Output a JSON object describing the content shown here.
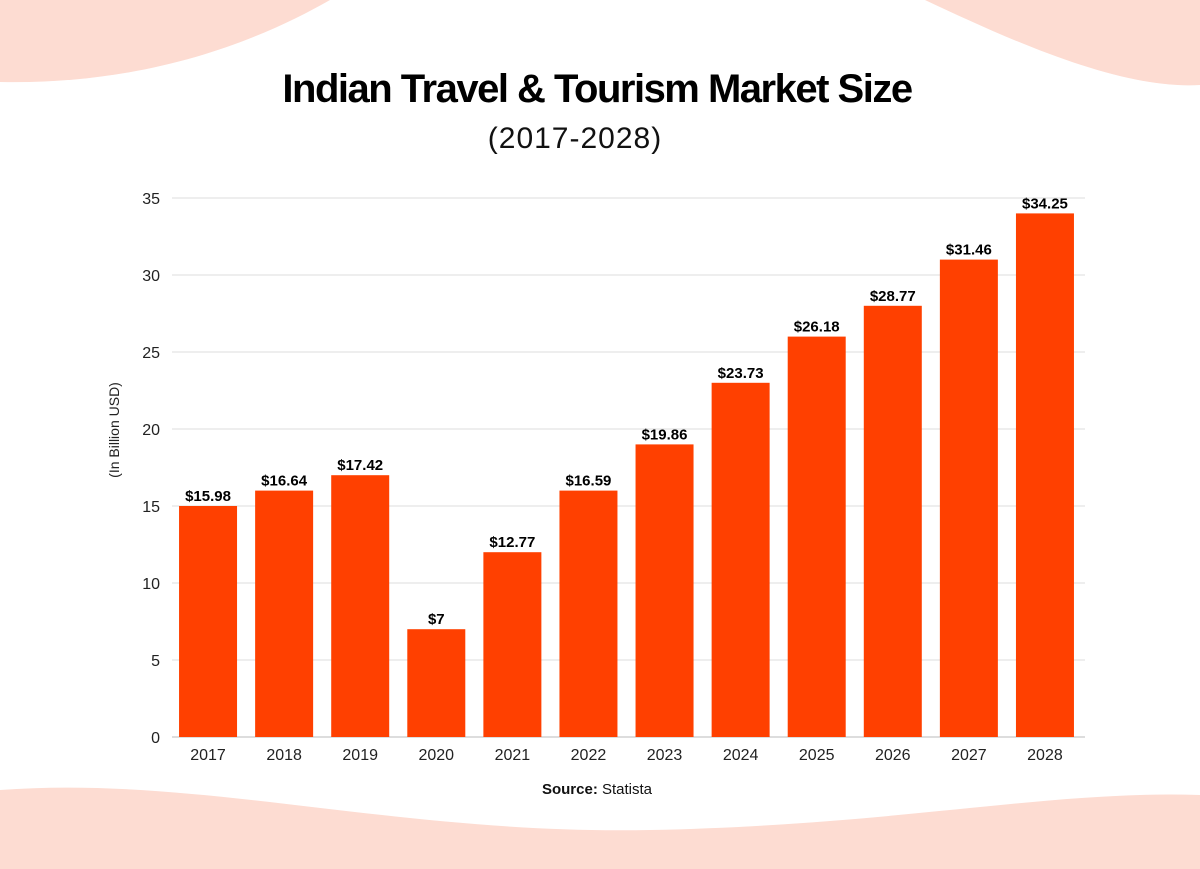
{
  "chart_data": {
    "type": "bar",
    "title": "Indian Travel & Tourism Market Size",
    "subtitle": "(2017-2028)",
    "ylabel": "(In Billion USD)",
    "xlabel": "",
    "categories": [
      "2017",
      "2018",
      "2019",
      "2020",
      "2021",
      "2022",
      "2023",
      "2024",
      "2025",
      "2026",
      "2027",
      "2028"
    ],
    "values": [
      15.98,
      16.64,
      17.42,
      7,
      12.77,
      16.59,
      19.86,
      23.73,
      26.18,
      28.77,
      31.46,
      34.25
    ],
    "data_labels": [
      "$15.98",
      "$16.64",
      "$17.42",
      "$7",
      "$12.77",
      "$16.59",
      "$19.86",
      "$23.73",
      "$26.18",
      "$28.77",
      "$31.46",
      "$34.25"
    ],
    "ylim": [
      0,
      35
    ],
    "yticks": [
      0,
      5,
      10,
      15,
      20,
      25,
      30,
      35
    ],
    "grid": true,
    "bar_color": "#FF4000",
    "source_label": "Source:",
    "source_value": "Statista"
  },
  "colors": {
    "background_blob": "#FDDCD2"
  }
}
